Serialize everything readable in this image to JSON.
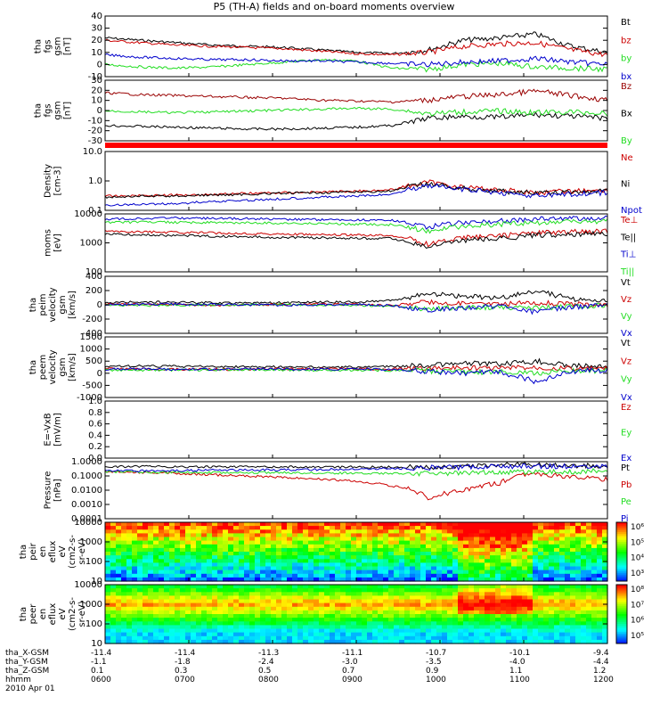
{
  "title": "P5 (TH-A) fields and on-board moments overview",
  "date_label": "2010 Apr 01",
  "colors": {
    "black": "#000000",
    "red": "#cc0000",
    "green": "#22dd22",
    "blue": "#0000cc",
    "darkred": "#990000"
  },
  "ephemeris": {
    "rows": [
      {
        "label": "tha_X-GSM",
        "values": [
          "-11.4",
          "-11.4",
          "-11.3",
          "-11.1",
          "-10.7",
          "-10.1",
          "-9.4"
        ]
      },
      {
        "label": "tha_Y-GSM",
        "values": [
          "-1.1",
          "-1.8",
          "-2.4",
          "-3.0",
          "-3.5",
          "-4.0",
          "-4.4"
        ]
      },
      {
        "label": "tha_Z-GSM",
        "values": [
          "0.1",
          "0.3",
          "0.5",
          "0.7",
          "0.9",
          "1.1",
          "1.2"
        ]
      },
      {
        "label": "hhmm",
        "values": [
          "0600",
          "0700",
          "0800",
          "0900",
          "1000",
          "1100",
          "1200"
        ]
      }
    ]
  },
  "chart_data": [
    {
      "type": "line",
      "ylabel": [
        "tha",
        "fgs",
        "gsm",
        "[nT]"
      ],
      "yticks": [
        "40",
        "30",
        "20",
        "10",
        "0",
        "-10"
      ],
      "ylim": [
        -10,
        40
      ],
      "series": [
        {
          "name": "Bt",
          "color": "#000000",
          "values": [
            22,
            20,
            18,
            16,
            15,
            14,
            12,
            10,
            9,
            12,
            20,
            22,
            25,
            15,
            10
          ]
        },
        {
          "name": "bz",
          "color": "#cc0000",
          "values": [
            20,
            18,
            16,
            15,
            14,
            13,
            11,
            9,
            8,
            10,
            15,
            17,
            18,
            12,
            8
          ]
        },
        {
          "name": "by",
          "color": "#22dd22",
          "values": [
            0,
            -2,
            -3,
            -2,
            0,
            2,
            4,
            3,
            -3,
            -4,
            0,
            1,
            -2,
            -3,
            -4
          ]
        },
        {
          "name": "bx",
          "color": "#0000cc",
          "values": [
            8,
            6,
            5,
            4,
            4,
            3,
            3,
            2,
            1,
            0,
            2,
            3,
            5,
            2,
            0
          ]
        }
      ]
    },
    {
      "type": "line",
      "ylabel": [
        "tha",
        "fgs",
        "gsm",
        "[nT]"
      ],
      "yticks": [
        "30",
        "20",
        "10",
        "0",
        "-10",
        "-20",
        "-30"
      ],
      "ylim": [
        -35,
        32
      ],
      "series": [
        {
          "name": "Bz",
          "color": "#990000",
          "values": [
            18,
            16,
            15,
            14,
            13,
            12,
            10,
            9,
            8,
            10,
            14,
            16,
            20,
            15,
            10
          ]
        },
        {
          "name": "Bx",
          "color": "#000000",
          "values": [
            -18,
            -19,
            -20,
            -21,
            -22,
            -22,
            -21,
            -20,
            -18,
            -10,
            -8,
            -9,
            -6,
            -8,
            -10
          ]
        },
        {
          "name": "By",
          "color": "#22dd22",
          "values": [
            -2,
            -3,
            -4,
            -3,
            -2,
            -1,
            0,
            1,
            0,
            -5,
            -3,
            -2,
            -4,
            -3,
            -5
          ]
        }
      ]
    },
    {
      "type": "line",
      "ylabel": [
        "Density",
        "[cm-3]"
      ],
      "yticks": [
        "10.0",
        "1.0",
        "0.1"
      ],
      "ylim": [
        0.1,
        10
      ],
      "log": true,
      "series": [
        {
          "name": "Ne",
          "color": "#cc0000",
          "values": [
            0.3,
            0.32,
            0.33,
            0.35,
            0.38,
            0.4,
            0.42,
            0.45,
            0.5,
            0.9,
            0.6,
            0.5,
            0.4,
            0.45,
            0.5
          ]
        },
        {
          "name": "Ni",
          "color": "#000000",
          "values": [
            0.28,
            0.3,
            0.31,
            0.33,
            0.35,
            0.38,
            0.4,
            0.42,
            0.45,
            0.8,
            0.55,
            0.45,
            0.38,
            0.4,
            0.45
          ]
        },
        {
          "name": "Npot",
          "color": "#0000cc",
          "values": [
            0.15,
            0.16,
            0.17,
            0.2,
            0.22,
            0.25,
            0.28,
            0.3,
            0.35,
            0.7,
            0.5,
            0.4,
            0.3,
            0.35,
            0.4
          ]
        }
      ]
    },
    {
      "type": "line",
      "ylabel": [
        "moms",
        "[eV]"
      ],
      "yticks": [
        "10000",
        "1000",
        "100"
      ],
      "ylim": [
        100,
        10000
      ],
      "log": true,
      "series": [
        {
          "name": "Te⊥",
          "color": "#cc0000",
          "values": [
            2500,
            2400,
            2300,
            2200,
            2100,
            2000,
            1900,
            1850,
            1800,
            900,
            1500,
            1800,
            2200,
            2400,
            2500
          ]
        },
        {
          "name": "Te||",
          "color": "#000000",
          "values": [
            2000,
            1900,
            1800,
            1700,
            1600,
            1550,
            1500,
            1450,
            1400,
            700,
            1200,
            1400,
            1800,
            2000,
            2100
          ]
        },
        {
          "name": "Ti⊥",
          "color": "#0000cc",
          "values": [
            6500,
            7000,
            7200,
            7000,
            6800,
            6600,
            6400,
            6200,
            6000,
            3500,
            5000,
            5800,
            6500,
            7000,
            7200
          ]
        },
        {
          "name": "Ti||",
          "color": "#22dd22",
          "values": [
            5000,
            5200,
            5100,
            5000,
            4900,
            4800,
            4600,
            4400,
            4200,
            2500,
            3800,
            4400,
            5000,
            5300,
            5400
          ]
        }
      ]
    },
    {
      "type": "line",
      "ylabel": [
        "tha",
        "peim",
        "velocity",
        "gsm",
        "[km/s]"
      ],
      "yticks": [
        "400",
        "200",
        "0",
        "-200",
        "-400"
      ],
      "ylim": [
        -400,
        400
      ],
      "series": [
        {
          "name": "Vt",
          "color": "#000000",
          "values": [
            30,
            40,
            35,
            30,
            25,
            30,
            35,
            40,
            60,
            150,
            120,
            90,
            200,
            80,
            50
          ]
        },
        {
          "name": "Vz",
          "color": "#cc0000",
          "values": [
            10,
            5,
            0,
            -5,
            0,
            5,
            10,
            5,
            -10,
            40,
            20,
            10,
            30,
            10,
            0
          ]
        },
        {
          "name": "Vy",
          "color": "#22dd22",
          "values": [
            -5,
            -10,
            -5,
            0,
            5,
            0,
            -5,
            -10,
            -20,
            -60,
            -30,
            -40,
            -50,
            -20,
            -10
          ]
        },
        {
          "name": "Vx",
          "color": "#0000cc",
          "values": [
            0,
            5,
            10,
            5,
            0,
            -5,
            0,
            5,
            -10,
            -80,
            -40,
            -20,
            -100,
            -30,
            -10
          ]
        }
      ]
    },
    {
      "type": "line",
      "ylabel": [
        "tha",
        "peem",
        "velocity",
        "gsm",
        "[km/s]"
      ],
      "yticks": [
        "1500",
        "1000",
        "500",
        "0",
        "-500",
        "-1000"
      ],
      "ylim": [
        -1400,
        1600
      ],
      "series": [
        {
          "name": "Vt",
          "color": "#000000",
          "values": [
            150,
            160,
            140,
            130,
            120,
            110,
            100,
            110,
            130,
            200,
            300,
            250,
            400,
            200,
            150
          ]
        },
        {
          "name": "Vz",
          "color": "#cc0000",
          "values": [
            20,
            10,
            0,
            -10,
            0,
            10,
            20,
            10,
            0,
            50,
            80,
            60,
            100,
            40,
            20
          ]
        },
        {
          "name": "Vy",
          "color": "#22dd22",
          "values": [
            -50,
            -60,
            -40,
            -30,
            -20,
            -30,
            -40,
            -50,
            -60,
            -100,
            -150,
            -120,
            -200,
            -80,
            -60
          ]
        },
        {
          "name": "Vx",
          "color": "#0000cc",
          "values": [
            0,
            10,
            -10,
            0,
            10,
            0,
            -10,
            0,
            -20,
            -100,
            -200,
            -150,
            -600,
            -100,
            -50
          ]
        }
      ]
    },
    {
      "type": "line",
      "ylabel": [
        "E=-VxB",
        "[mV/m]"
      ],
      "yticks": [
        "1.0",
        "0.8",
        "0.6",
        "0.4",
        "0.2",
        "0.0"
      ],
      "ylim": [
        0,
        1
      ],
      "series": [
        {
          "name": "Ez",
          "color": "#cc0000",
          "values": []
        },
        {
          "name": "Ey",
          "color": "#22dd22",
          "values": []
        },
        {
          "name": "Ex",
          "color": "#0000cc",
          "values": []
        }
      ]
    },
    {
      "type": "line",
      "ylabel": [
        "Pressure",
        "[nPa]"
      ],
      "yticks": [
        "1.0000",
        "0.1000",
        "0.0100",
        "0.0010",
        "0.0001"
      ],
      "ylim": [
        0.0001,
        1
      ],
      "log": true,
      "series": [
        {
          "name": "Pt",
          "color": "#000000",
          "values": [
            0.45,
            0.45,
            0.44,
            0.44,
            0.43,
            0.43,
            0.42,
            0.42,
            0.42,
            0.4,
            0.45,
            0.6,
            0.7,
            0.55,
            0.5
          ]
        },
        {
          "name": "Pb",
          "color": "#cc0000",
          "values": [
            0.2,
            0.18,
            0.15,
            0.12,
            0.1,
            0.08,
            0.06,
            0.04,
            0.02,
            0.002,
            0.01,
            0.03,
            0.15,
            0.08,
            0.06
          ]
        },
        {
          "name": "Pe",
          "color": "#22dd22",
          "values": [
            0.2,
            0.19,
            0.18,
            0.17,
            0.17,
            0.17,
            0.16,
            0.16,
            0.15,
            0.15,
            0.16,
            0.18,
            0.2,
            0.2,
            0.22
          ]
        },
        {
          "name": "Pi",
          "color": "#0000cc",
          "values": [
            0.22,
            0.23,
            0.24,
            0.25,
            0.26,
            0.27,
            0.28,
            0.3,
            0.32,
            0.38,
            0.4,
            0.45,
            0.5,
            0.45,
            0.42
          ]
        }
      ]
    },
    {
      "type": "heatmap",
      "ylabel": [
        "tha",
        "peir",
        "en",
        "eflux",
        "eV",
        "(cm2-s-",
        "sr-eV)"
      ],
      "yticks": [
        "10000",
        "1000",
        "100",
        "10"
      ],
      "ylim": [
        10,
        20000
      ],
      "log": true,
      "colorbar": {
        "ticks": [
          "10⁶",
          "10⁵",
          "10⁴",
          "10³"
        ]
      }
    },
    {
      "type": "heatmap",
      "ylabel": [
        "tha",
        "peer",
        "en",
        "eflux",
        "eV",
        "(cm2-s-",
        "sr-eV)"
      ],
      "yticks": [
        "10000",
        "1000",
        "100",
        "10"
      ],
      "ylim": [
        10,
        20000
      ],
      "log": true,
      "colorbar": {
        "ticks": [
          "10⁸",
          "10⁷",
          "10⁶",
          "10⁵"
        ]
      }
    }
  ]
}
